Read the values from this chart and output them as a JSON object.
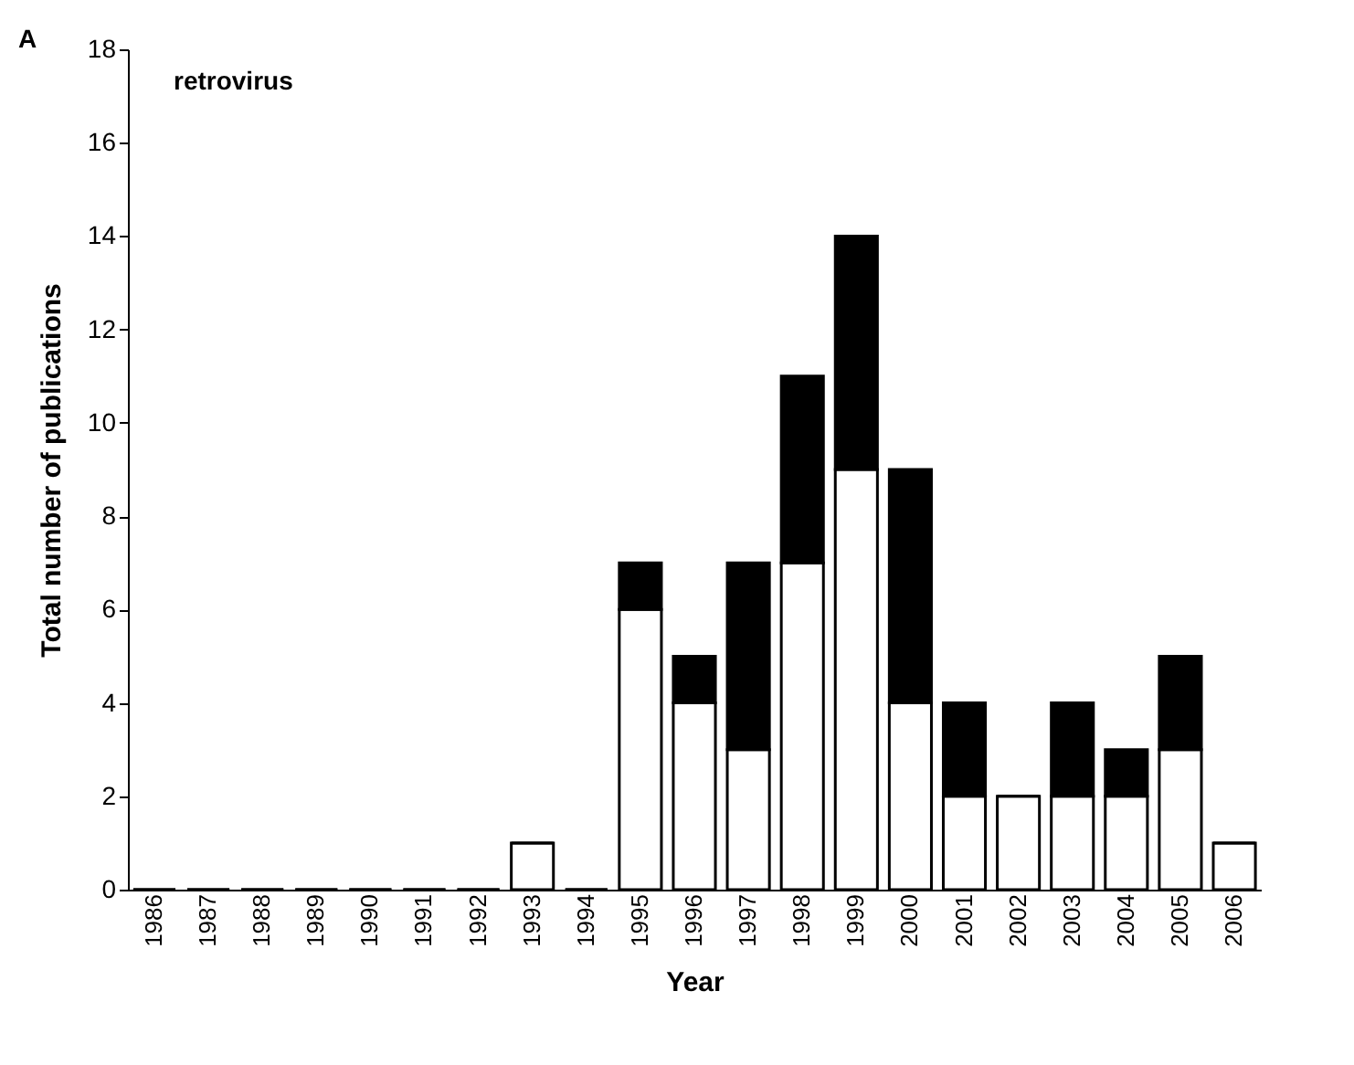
{
  "chart_data": {
    "type": "bar",
    "stacked": true,
    "xlabel": "Year",
    "ylabel": "Total number of publications",
    "categories": [
      "1986",
      "1987",
      "1988",
      "1989",
      "1990",
      "1991",
      "1992",
      "1993",
      "1994",
      "1995",
      "1996",
      "1997",
      "1998",
      "1999",
      "2000",
      "2001",
      "2002",
      "2003",
      "2004",
      "2005",
      "2006"
    ],
    "series": [
      {
        "color": "#ffffff",
        "values": [
          0,
          0,
          0,
          0,
          0,
          0,
          0,
          1,
          0,
          6,
          4,
          3,
          7,
          9,
          4,
          2,
          2,
          2,
          2,
          3,
          1
        ]
      },
      {
        "color": "#000000",
        "values": [
          0,
          0,
          0,
          0,
          0,
          0,
          0,
          0,
          0,
          1,
          1,
          4,
          4,
          5,
          5,
          2,
          0,
          2,
          1,
          2,
          0
        ]
      }
    ],
    "ylim": [
      0,
      18
    ],
    "yticks": [
      0,
      2,
      4,
      6,
      8,
      10,
      12,
      14,
      16,
      18
    ],
    "grid": false,
    "annotations": [
      "A",
      "retrovirus"
    ]
  }
}
